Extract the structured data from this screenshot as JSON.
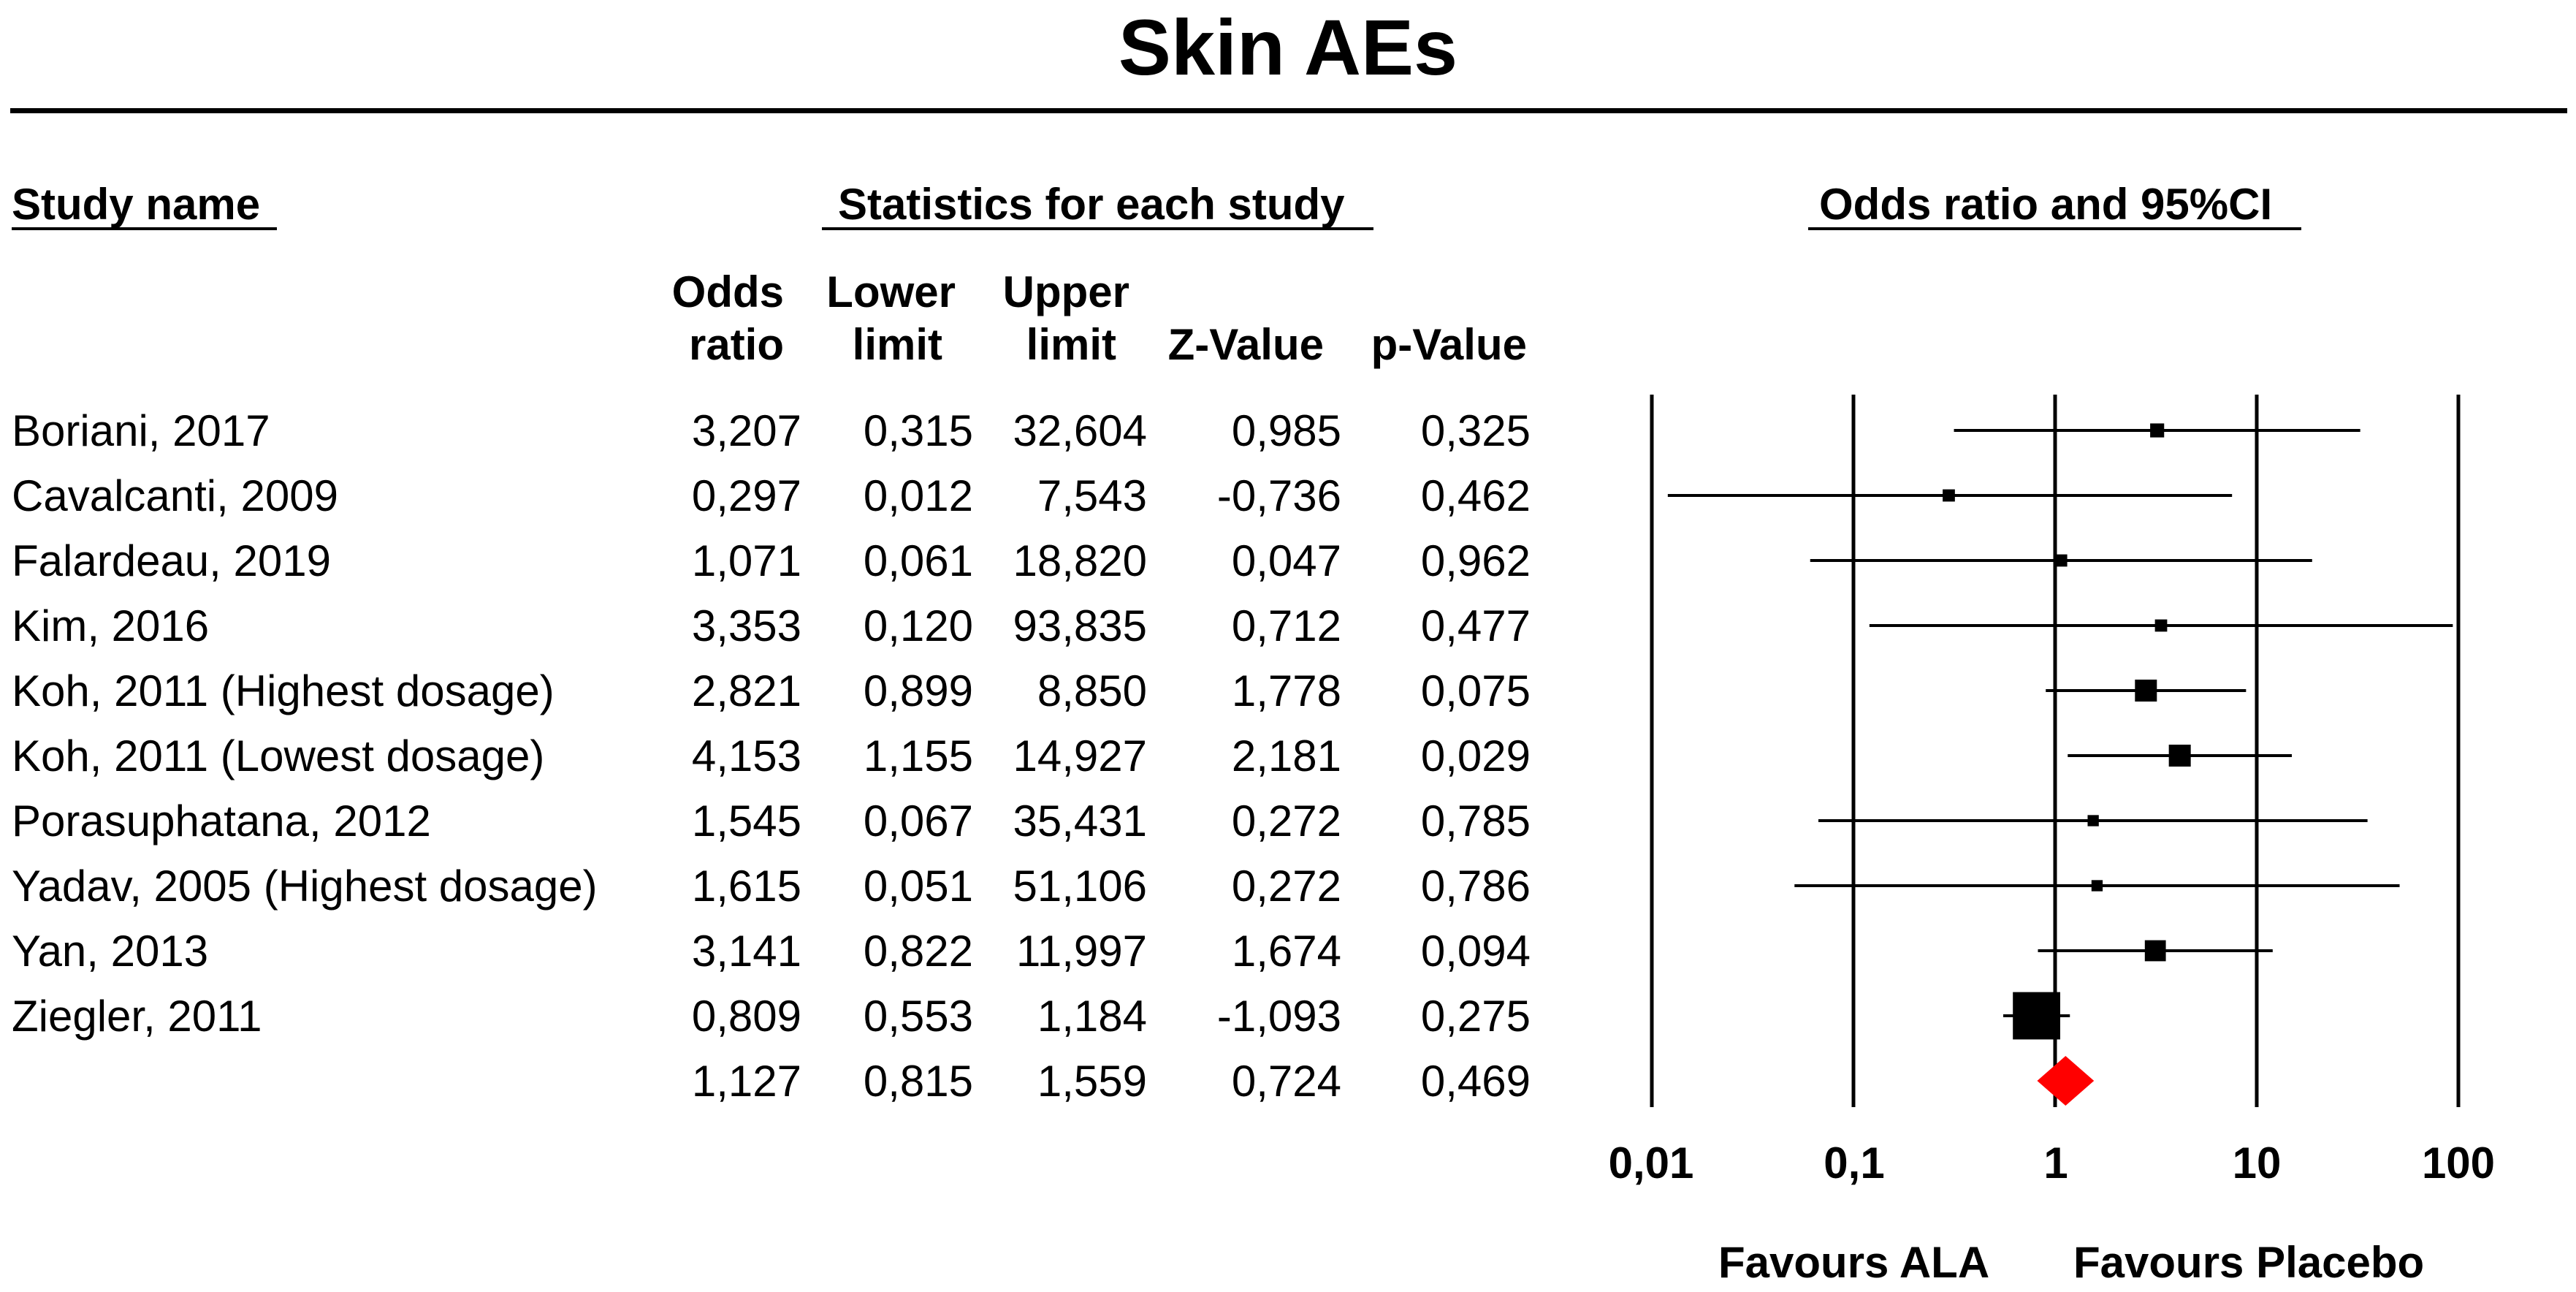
{
  "title": "Skin AEs",
  "headers": {
    "study_name": "Study name",
    "stats": "Statistics for each study",
    "plot": "Odds ratio and 95%CI",
    "col_or_1": "Odds",
    "col_or_2": "ratio",
    "col_ll_1": "Lower",
    "col_ll_2": "limit",
    "col_ul_1": "Upper",
    "col_ul_2": "limit",
    "col_z": "Z-Value",
    "col_p": "p-Value"
  },
  "rows": [
    {
      "study": "Boriani, 2017",
      "or": "3,207",
      "ll": "0,315",
      "ul": "32,604",
      "z": "0,985",
      "p": "0,325"
    },
    {
      "study": "Cavalcanti, 2009",
      "or": "0,297",
      "ll": "0,012",
      "ul": "7,543",
      "z": "-0,736",
      "p": "0,462"
    },
    {
      "study": "Falardeau, 2019",
      "or": "1,071",
      "ll": "0,061",
      "ul": "18,820",
      "z": "0,047",
      "p": "0,962"
    },
    {
      "study": "Kim, 2016",
      "or": "3,353",
      "ll": "0,120",
      "ul": "93,835",
      "z": "0,712",
      "p": "0,477"
    },
    {
      "study": "Koh, 2011 (Highest dosage)",
      "or": "2,821",
      "ll": "0,899",
      "ul": "8,850",
      "z": "1,778",
      "p": "0,075"
    },
    {
      "study": "Koh, 2011 (Lowest dosage)",
      "or": "4,153",
      "ll": "1,155",
      "ul": "14,927",
      "z": "2,181",
      "p": "0,029"
    },
    {
      "study": "Porasuphatana, 2012",
      "or": "1,545",
      "ll": "0,067",
      "ul": "35,431",
      "z": "0,272",
      "p": "0,785"
    },
    {
      "study": "Yadav, 2005 (Highest dosage)",
      "or": "1,615",
      "ll": "0,051",
      "ul": "51,106",
      "z": "0,272",
      "p": "0,786"
    },
    {
      "study": "Yan, 2013",
      "or": "3,141",
      "ll": "0,822",
      "ul": "11,997",
      "z": "1,674",
      "p": "0,094"
    },
    {
      "study": "Ziegler, 2011",
      "or": "0,809",
      "ll": "0,553",
      "ul": "1,184",
      "z": "-1,093",
      "p": "0,275"
    },
    {
      "study": "",
      "or": "1,127",
      "ll": "0,815",
      "ul": "1,559",
      "z": "0,724",
      "p": "0,469"
    }
  ],
  "chart_data": {
    "type": "forest",
    "scale": "log",
    "xlim": [
      0.01,
      100
    ],
    "ticks": [
      {
        "value": 0.01,
        "label": "0,01"
      },
      {
        "value": 0.1,
        "label": "0,1"
      },
      {
        "value": 1,
        "label": "1"
      },
      {
        "value": 10,
        "label": "10"
      },
      {
        "value": 100,
        "label": "100"
      }
    ],
    "studies": [
      {
        "name": "Boriani, 2017",
        "or": 3.207,
        "lower": 0.315,
        "upper": 32.604,
        "weight": 0.3
      },
      {
        "name": "Cavalcanti, 2009",
        "or": 0.297,
        "lower": 0.012,
        "upper": 7.543,
        "weight": 0.2
      },
      {
        "name": "Falardeau, 2019",
        "or": 1.071,
        "lower": 0.061,
        "upper": 18.82,
        "weight": 0.2
      },
      {
        "name": "Kim, 2016",
        "or": 3.353,
        "lower": 0.12,
        "upper": 93.835,
        "weight": 0.2
      },
      {
        "name": "Koh, 2011 (Highest dosage)",
        "or": 2.821,
        "lower": 0.899,
        "upper": 8.85,
        "weight": 1.0
      },
      {
        "name": "Koh, 2011 (Lowest dosage)",
        "or": 4.153,
        "lower": 1.155,
        "upper": 14.927,
        "weight": 1.0
      },
      {
        "name": "Porasuphatana, 2012",
        "or": 1.545,
        "lower": 0.067,
        "upper": 35.431,
        "weight": 0.15
      },
      {
        "name": "Yadav, 2005 (Highest dosage)",
        "or": 1.615,
        "lower": 0.051,
        "upper": 51.106,
        "weight": 0.15
      },
      {
        "name": "Yan, 2013",
        "or": 3.141,
        "lower": 0.822,
        "upper": 11.997,
        "weight": 0.9
      },
      {
        "name": "Ziegler, 2011",
        "or": 0.809,
        "lower": 0.553,
        "upper": 1.184,
        "weight": 6.0
      }
    ],
    "summary": {
      "or": 1.127,
      "lower": 0.815,
      "upper": 1.559,
      "color": "#ff0000"
    },
    "favours_left": "Favours ALA",
    "favours_right": "Favours Placebo"
  }
}
